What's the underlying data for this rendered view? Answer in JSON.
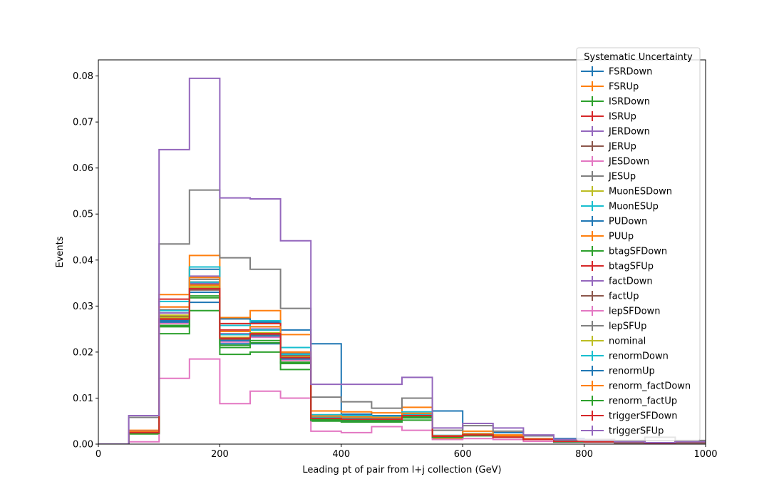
{
  "chart_data": {
    "type": "line",
    "style": "step-histogram",
    "xlabel": "Leading pt of pair from l+j collection (GeV)",
    "ylabel": "Events",
    "xlim": [
      0,
      1000
    ],
    "ylim": [
      0,
      0.0835
    ],
    "xticks": [
      0,
      200,
      400,
      600,
      800,
      1000
    ],
    "yticks": [
      0.0,
      0.01,
      0.02,
      0.03,
      0.04,
      0.05,
      0.06,
      0.07,
      0.08
    ],
    "ytick_labels": [
      "0.00",
      "0.01",
      "0.02",
      "0.03",
      "0.04",
      "0.05",
      "0.06",
      "0.07",
      "0.08"
    ],
    "grid": false,
    "legend": {
      "title": "Systematic Uncertainty",
      "position": "top-right"
    },
    "bin_edges": [
      0,
      50,
      100,
      150,
      200,
      250,
      300,
      350,
      400,
      450,
      500,
      550,
      600,
      650,
      700,
      750,
      800,
      850,
      900,
      950,
      1000
    ],
    "series": [
      {
        "name": "FSRDown",
        "color": "#1f77b4",
        "values": [
          0,
          0.0025,
          0.0285,
          0.038,
          0.0272,
          0.0265,
          0.0248,
          0.0218,
          0.0065,
          0.0062,
          0.0058,
          0.0072,
          0.002,
          0.0025,
          0.0018,
          0.0012,
          0.0005,
          0.0005,
          0.0002,
          0.0005
        ]
      },
      {
        "name": "FSRUp",
        "color": "#ff7f0e",
        "values": [
          0,
          0.003,
          0.0325,
          0.041,
          0.0275,
          0.029,
          0.0238,
          0.0072,
          0.007,
          0.0068,
          0.008,
          0.0012,
          0.0028,
          0.002,
          0.0012,
          0.0008,
          0.0008,
          0.0005,
          0.0002,
          0.0005
        ]
      },
      {
        "name": "ISRDown",
        "color": "#2ca02c",
        "values": [
          0,
          0.0022,
          0.024,
          0.029,
          0.0195,
          0.02,
          0.0162,
          0.005,
          0.0048,
          0.0048,
          0.0052,
          0.0015,
          0.0018,
          0.0015,
          0.001,
          0.0005,
          0.0005,
          0.0003,
          0.0002,
          0.0003
        ]
      },
      {
        "name": "ISRUp",
        "color": "#d62728",
        "values": [
          0,
          0.0025,
          0.0298,
          0.0352,
          0.0248,
          0.025,
          0.02,
          0.006,
          0.0058,
          0.0056,
          0.0065,
          0.0018,
          0.0022,
          0.0017,
          0.0011,
          0.0006,
          0.0006,
          0.0004,
          0.0002,
          0.0004
        ]
      },
      {
        "name": "JERDown",
        "color": "#9467bd",
        "values": [
          0,
          0.0028,
          0.029,
          0.0365,
          0.0245,
          0.0255,
          0.0195,
          0.006,
          0.0058,
          0.0058,
          0.0066,
          0.0018,
          0.0022,
          0.0016,
          0.0011,
          0.0006,
          0.0006,
          0.0004,
          0.0002,
          0.0004
        ]
      },
      {
        "name": "JERUp",
        "color": "#8c564b",
        "values": [
          0,
          0.0026,
          0.0278,
          0.0348,
          0.0238,
          0.0248,
          0.0192,
          0.0058,
          0.0056,
          0.0055,
          0.0064,
          0.0017,
          0.0021,
          0.0016,
          0.001,
          0.0006,
          0.0006,
          0.0004,
          0.0002,
          0.0004
        ]
      },
      {
        "name": "JESDown",
        "color": "#e377c2",
        "values": [
          0,
          0.0005,
          0.0143,
          0.0185,
          0.0088,
          0.0115,
          0.01,
          0.0028,
          0.0025,
          0.0038,
          0.003,
          0.001,
          0.0012,
          0.001,
          0.0006,
          0.0004,
          0.0004,
          0.0002,
          0.0001,
          0.0002
        ]
      },
      {
        "name": "JESUp",
        "color": "#7f7f7f",
        "values": [
          0,
          0.0058,
          0.0435,
          0.0552,
          0.0405,
          0.038,
          0.0295,
          0.0102,
          0.0092,
          0.0078,
          0.01,
          0.003,
          0.004,
          0.0028,
          0.0018,
          0.001,
          0.001,
          0.0008,
          0.0015,
          0.0008
        ]
      },
      {
        "name": "MuonESDown",
        "color": "#bcbd22",
        "values": [
          0,
          0.0025,
          0.0275,
          0.034,
          0.0228,
          0.0235,
          0.0185,
          0.0055,
          0.0054,
          0.0052,
          0.006,
          0.0016,
          0.002,
          0.0015,
          0.001,
          0.0006,
          0.0005,
          0.0004,
          0.0002,
          0.0004
        ]
      },
      {
        "name": "MuonESUp",
        "color": "#17becf",
        "values": [
          0,
          0.0027,
          0.031,
          0.0385,
          0.0258,
          0.0268,
          0.021,
          0.0064,
          0.0062,
          0.006,
          0.007,
          0.0019,
          0.0023,
          0.0017,
          0.0011,
          0.0007,
          0.0006,
          0.0004,
          0.0002,
          0.0004
        ]
      },
      {
        "name": "PUDown",
        "color": "#1f77b4",
        "values": [
          0,
          0.0025,
          0.0265,
          0.0308,
          0.0218,
          0.0218,
          0.0182,
          0.0052,
          0.005,
          0.005,
          0.0058,
          0.0016,
          0.0019,
          0.0015,
          0.001,
          0.0005,
          0.0005,
          0.0003,
          0.0002,
          0.0003
        ]
      },
      {
        "name": "PUUp",
        "color": "#ff7f0e",
        "values": [
          0,
          0.0026,
          0.028,
          0.0345,
          0.0228,
          0.024,
          0.019,
          0.0058,
          0.0056,
          0.0055,
          0.0063,
          0.0017,
          0.0021,
          0.0016,
          0.001,
          0.0006,
          0.0006,
          0.0004,
          0.0002,
          0.0004
        ]
      },
      {
        "name": "btagSFDown",
        "color": "#2ca02c",
        "values": [
          0,
          0.0024,
          0.0258,
          0.0322,
          0.021,
          0.022,
          0.0175,
          0.0052,
          0.005,
          0.005,
          0.0057,
          0.0015,
          0.0019,
          0.0015,
          0.001,
          0.0005,
          0.0005,
          0.0003,
          0.0002,
          0.0003
        ]
      },
      {
        "name": "btagSFUp",
        "color": "#d62728",
        "values": [
          0,
          0.0027,
          0.0315,
          0.0352,
          0.0262,
          0.0262,
          0.0195,
          0.006,
          0.0058,
          0.0057,
          0.0066,
          0.0018,
          0.0022,
          0.0016,
          0.0011,
          0.0006,
          0.0006,
          0.0004,
          0.0002,
          0.0004
        ]
      },
      {
        "name": "factDown",
        "color": "#9467bd",
        "values": [
          0,
          0.0026,
          0.0285,
          0.035,
          0.024,
          0.025,
          0.0195,
          0.0059,
          0.0057,
          0.0056,
          0.0065,
          0.0018,
          0.0021,
          0.0016,
          0.0011,
          0.0006,
          0.0006,
          0.0004,
          0.0002,
          0.0004
        ]
      },
      {
        "name": "factUp",
        "color": "#8c564b",
        "values": [
          0,
          0.0025,
          0.027,
          0.0335,
          0.0228,
          0.0238,
          0.0186,
          0.0056,
          0.0054,
          0.0053,
          0.0062,
          0.0017,
          0.002,
          0.0015,
          0.001,
          0.0006,
          0.0005,
          0.0004,
          0.0002,
          0.0004
        ]
      },
      {
        "name": "lepSFDown",
        "color": "#e377c2",
        "values": [
          0,
          0.0024,
          0.0262,
          0.033,
          0.0222,
          0.0232,
          0.0182,
          0.0055,
          0.0053,
          0.0052,
          0.006,
          0.0016,
          0.002,
          0.0015,
          0.001,
          0.0005,
          0.0005,
          0.0003,
          0.0002,
          0.0003
        ]
      },
      {
        "name": "lepSFUp",
        "color": "#7f7f7f",
        "values": [
          0,
          0.0027,
          0.0292,
          0.0358,
          0.0245,
          0.0255,
          0.0198,
          0.006,
          0.0058,
          0.0057,
          0.0066,
          0.0018,
          0.0022,
          0.0017,
          0.0011,
          0.0006,
          0.0006,
          0.0004,
          0.0002,
          0.0004
        ]
      },
      {
        "name": "nominal",
        "color": "#bcbd22",
        "values": [
          0,
          0.0025,
          0.028,
          0.0342,
          0.0232,
          0.0242,
          0.019,
          0.0057,
          0.0055,
          0.0055,
          0.0063,
          0.0017,
          0.0021,
          0.0016,
          0.001,
          0.0006,
          0.0006,
          0.0004,
          0.0002,
          0.0004
        ]
      },
      {
        "name": "renormDown",
        "color": "#17becf",
        "values": [
          0,
          0.0026,
          0.029,
          0.0352,
          0.0238,
          0.0248,
          0.0195,
          0.0059,
          0.0057,
          0.0056,
          0.0065,
          0.0018,
          0.0021,
          0.0016,
          0.0011,
          0.0006,
          0.0006,
          0.0004,
          0.0002,
          0.0004
        ]
      },
      {
        "name": "renormUp",
        "color": "#1f77b4",
        "values": [
          0,
          0.0024,
          0.0268,
          0.033,
          0.0225,
          0.0235,
          0.0185,
          0.0055,
          0.0053,
          0.0053,
          0.0061,
          0.0016,
          0.002,
          0.0015,
          0.001,
          0.0005,
          0.0005,
          0.0003,
          0.0002,
          0.0003
        ]
      },
      {
        "name": "renorm_factDown",
        "color": "#ff7f0e",
        "values": [
          0,
          0.0027,
          0.0298,
          0.0362,
          0.0245,
          0.0255,
          0.02,
          0.0061,
          0.0059,
          0.0058,
          0.0067,
          0.0018,
          0.0022,
          0.0017,
          0.0011,
          0.0006,
          0.0006,
          0.0004,
          0.0002,
          0.0004
        ]
      },
      {
        "name": "renorm_factUp",
        "color": "#2ca02c",
        "values": [
          0,
          0.0023,
          0.0255,
          0.0318,
          0.0215,
          0.0225,
          0.0178,
          0.0053,
          0.0051,
          0.0051,
          0.0059,
          0.0015,
          0.0019,
          0.0015,
          0.001,
          0.0005,
          0.0005,
          0.0003,
          0.0002,
          0.0003
        ]
      },
      {
        "name": "triggerSFDown",
        "color": "#d62728",
        "values": [
          0,
          0.0025,
          0.0272,
          0.0338,
          0.023,
          0.024,
          0.0188,
          0.0056,
          0.0054,
          0.0054,
          0.0062,
          0.0017,
          0.002,
          0.0015,
          0.001,
          0.0006,
          0.0005,
          0.0004,
          0.0002,
          0.0004
        ]
      },
      {
        "name": "triggerSFUp",
        "color": "#9467bd",
        "values": [
          0,
          0.0062,
          0.064,
          0.0795,
          0.0535,
          0.0533,
          0.0442,
          0.013,
          0.013,
          0.013,
          0.0145,
          0.0035,
          0.0045,
          0.0035,
          0.002,
          0.001,
          0.0008,
          0.0005,
          0.0003,
          0.0005
        ]
      }
    ]
  }
}
